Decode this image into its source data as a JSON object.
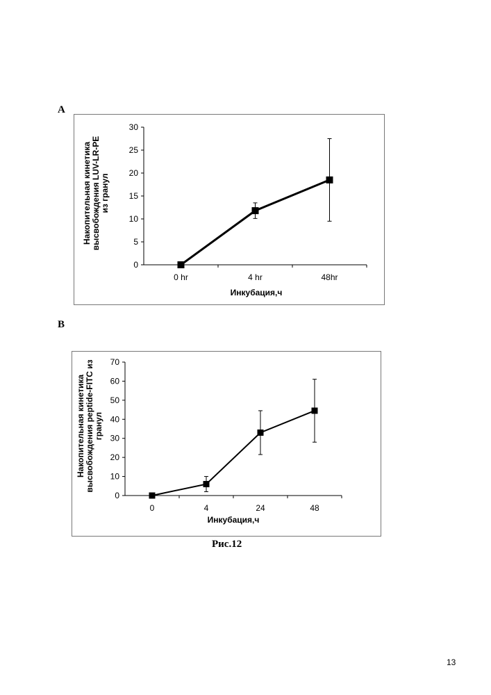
{
  "panels": [
    {
      "letter": "A"
    },
    {
      "letter": "B"
    }
  ],
  "chart_data": [
    {
      "type": "line",
      "panel": "A",
      "categories": [
        "0 hr",
        "4 hr",
        "48hr"
      ],
      "series": [
        {
          "values": [
            0,
            11.8,
            18.5
          ],
          "error": [
            0,
            1.7,
            9
          ]
        }
      ],
      "xlabel": "Инкубация,ч",
      "ylabel": [
        "Накопительная кинетика",
        "высвобождения LUV-LR-PE",
        "из гранул"
      ],
      "ylim": [
        0,
        30
      ],
      "yticks": [
        0,
        5,
        10,
        15,
        20,
        25,
        30
      ],
      "grid": false,
      "legend": "none"
    },
    {
      "type": "line",
      "panel": "B",
      "categories": [
        "0",
        "4",
        "24",
        "48"
      ],
      "series": [
        {
          "values": [
            0,
            6,
            33,
            44.5
          ],
          "error": [
            0,
            4,
            11.5,
            16.5
          ]
        }
      ],
      "xlabel": "Инкубация,ч",
      "ylabel": [
        "Накопительная кинетика",
        "высвобождения peptide-FITC из",
        "гранул"
      ],
      "ylim": [
        0,
        70
      ],
      "yticks": [
        0,
        10,
        20,
        30,
        40,
        50,
        60,
        70
      ],
      "grid": false,
      "legend": "none"
    }
  ],
  "caption": "Рис.12",
  "page_number": "13"
}
